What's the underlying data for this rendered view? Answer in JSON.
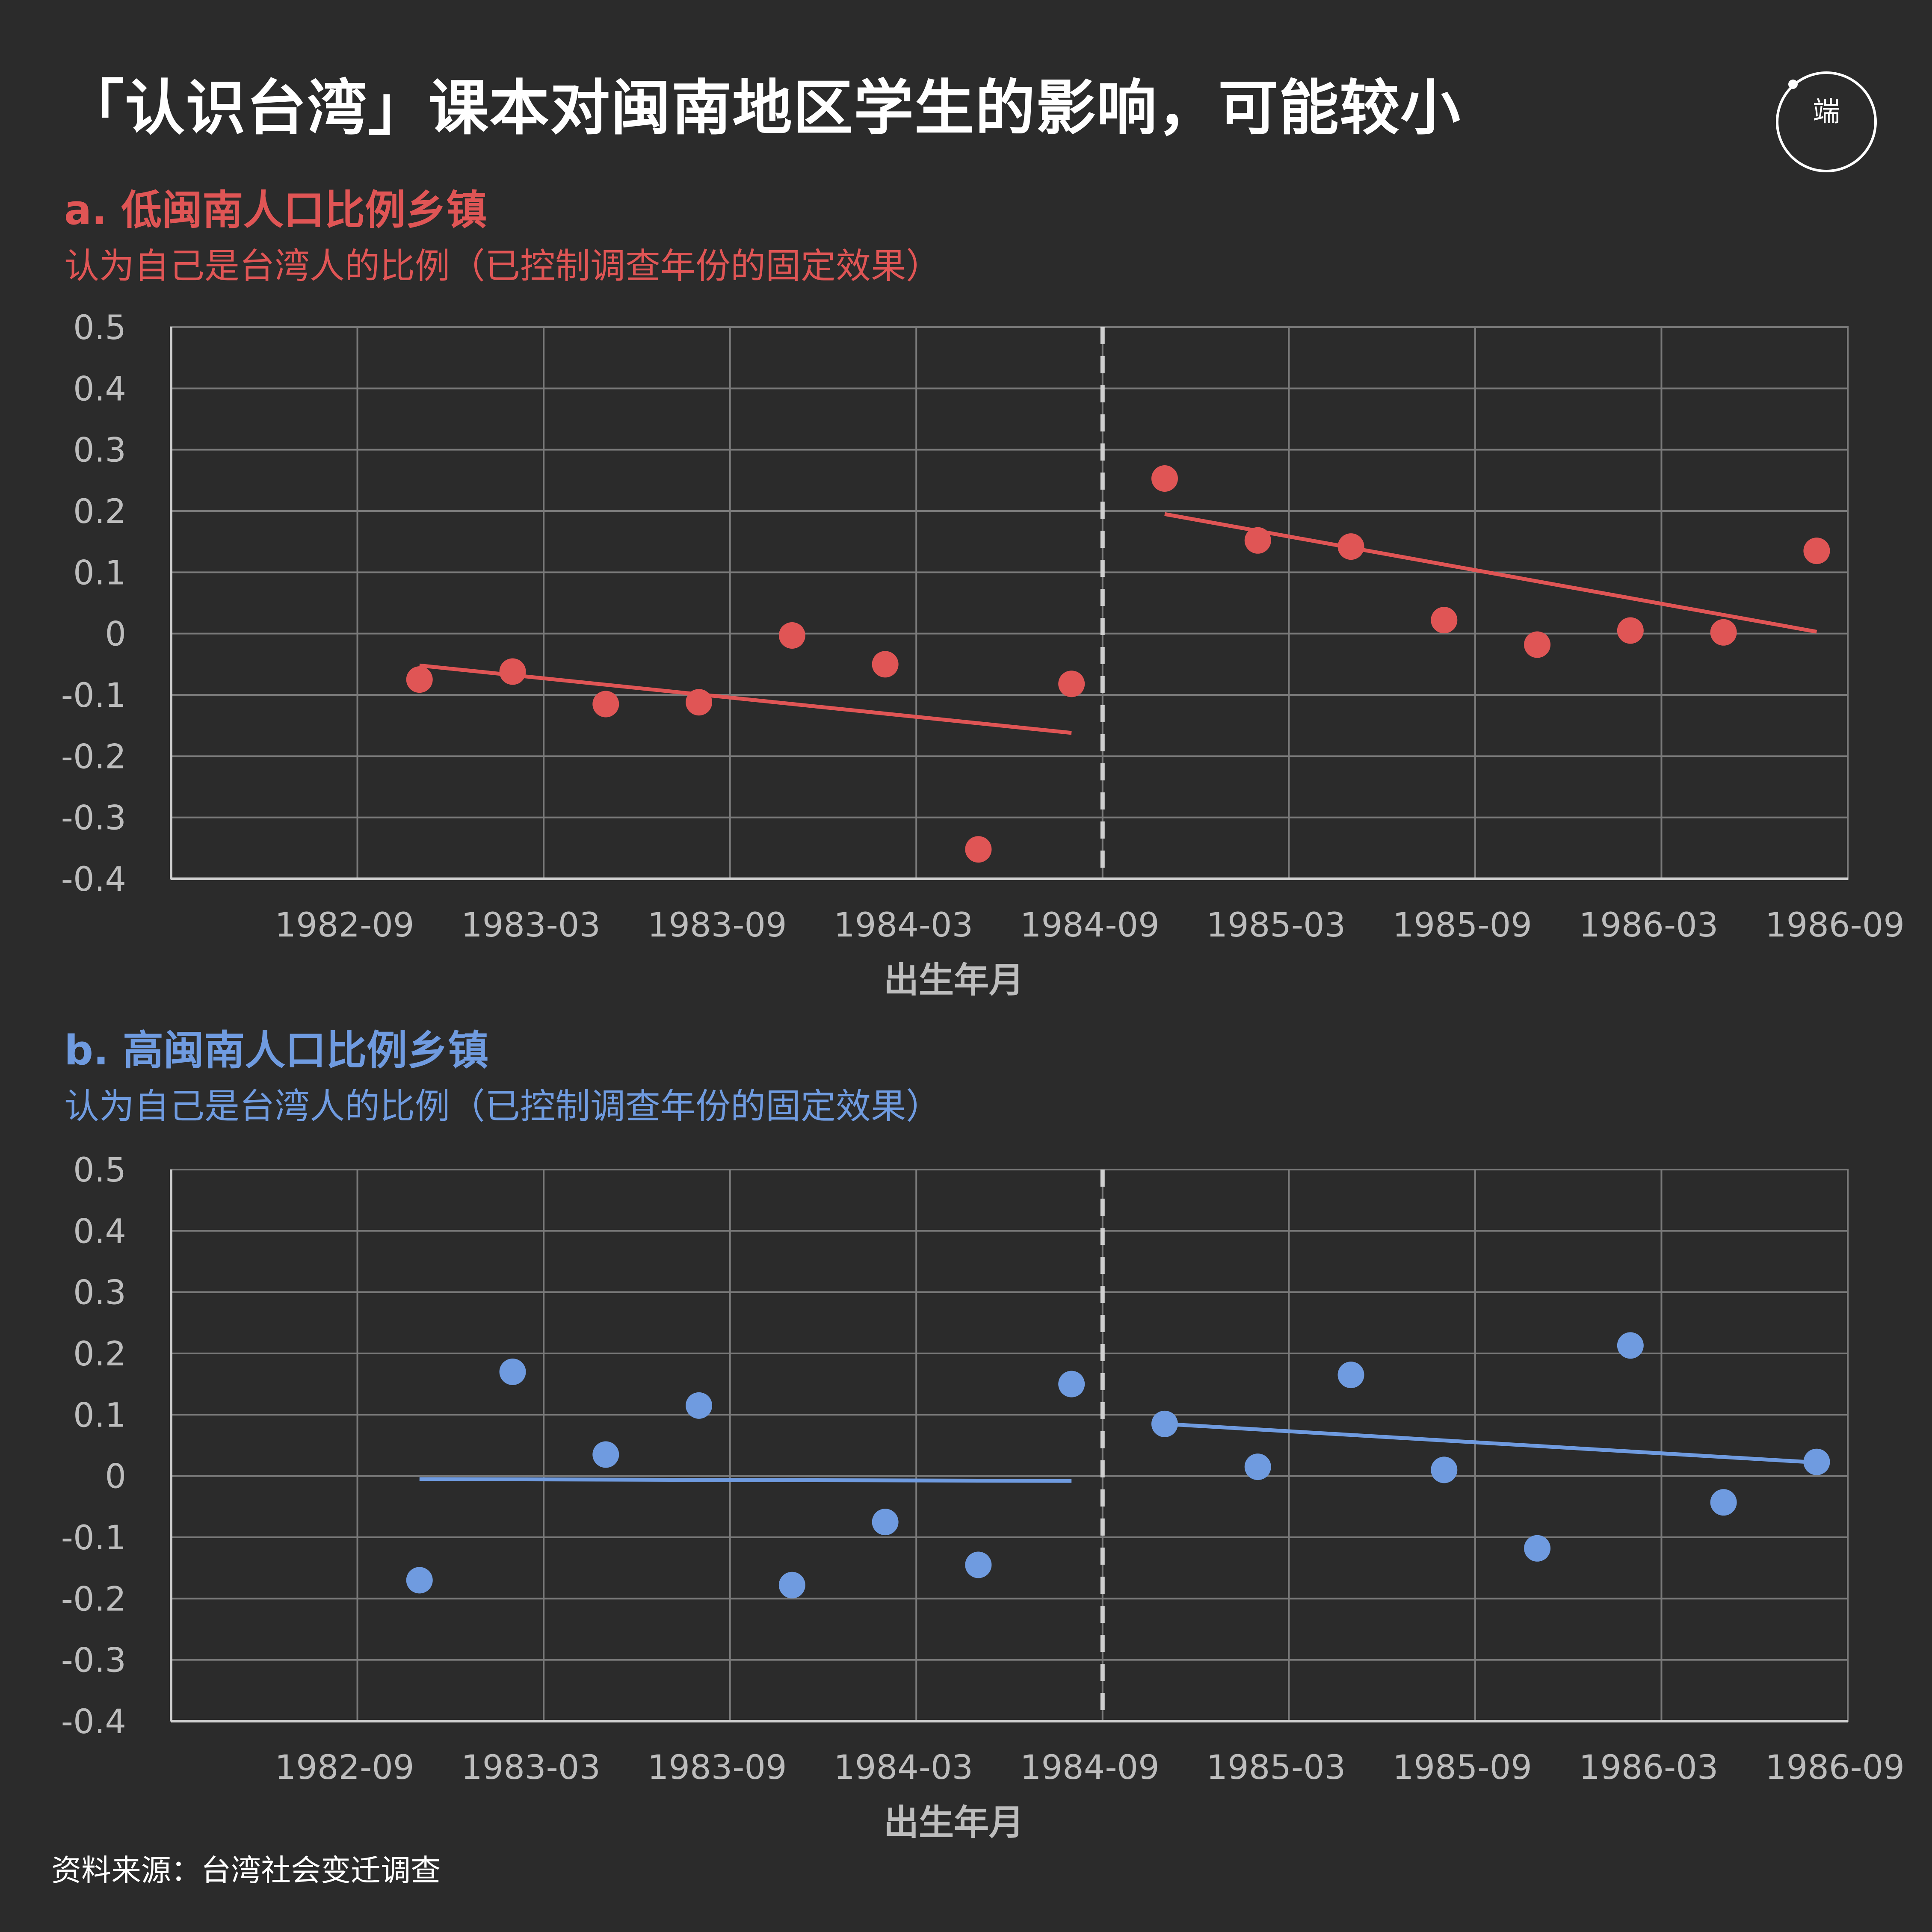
{
  "title": "「认识台湾」课本对闽南地区学生的影响，可能较小",
  "logo": {
    "icon": "theinitium-logo",
    "text": "端"
  },
  "source": "资料来源：台湾社会变迁调查",
  "colors": {
    "background": "#2b2b2b",
    "panel_a": "#e05555",
    "panel_b": "#6f9be0",
    "grid": "#7a7a7a",
    "tick": "#bdbdbd"
  },
  "chart_data": [
    {
      "type": "scatter",
      "title": "a. 低闽南人口比例乡镇",
      "subtitle": "认为自己是台湾人的比例（已控制调查年份的固定效果）",
      "xlabel": "出生年月",
      "ylabel": "",
      "x_ticks": [
        "1982-09",
        "1983-03",
        "1983-09",
        "1984-03",
        "1984-09",
        "1985-03",
        "1985-09",
        "1986-03",
        "1986-09"
      ],
      "xlim": [
        "1982-03",
        "1986-09"
      ],
      "ylim": [
        -0.4,
        0.5
      ],
      "y_ticks": [
        "0.5",
        "0.4",
        "0.3",
        "0.2",
        "0.1",
        "0",
        "-0.1",
        "-0.2",
        "-0.3",
        "-0.4"
      ],
      "grid": true,
      "cutoff": "1984-09",
      "points": [
        {
          "x": "1982-11",
          "y": -0.075
        },
        {
          "x": "1983-02",
          "y": -0.062
        },
        {
          "x": "1983-05",
          "y": -0.115
        },
        {
          "x": "1983-08",
          "y": -0.112
        },
        {
          "x": "1983-11",
          "y": -0.003
        },
        {
          "x": "1984-02",
          "y": -0.05
        },
        {
          "x": "1984-05",
          "y": -0.352
        },
        {
          "x": "1984-08",
          "y": -0.082
        },
        {
          "x": "1984-11",
          "y": 0.253
        },
        {
          "x": "1985-02",
          "y": 0.152
        },
        {
          "x": "1985-05",
          "y": 0.142
        },
        {
          "x": "1985-08",
          "y": 0.022
        },
        {
          "x": "1985-11",
          "y": -0.018
        },
        {
          "x": "1986-02",
          "y": 0.005
        },
        {
          "x": "1986-05",
          "y": 0.002
        },
        {
          "x": "1986-08",
          "y": 0.135
        }
      ],
      "fit_lines": [
        {
          "x": [
            "1982-11",
            "1984-08"
          ],
          "y": [
            -0.052,
            -0.162
          ]
        },
        {
          "x": [
            "1984-11",
            "1986-08"
          ],
          "y": [
            0.195,
            0.003
          ]
        }
      ]
    },
    {
      "type": "scatter",
      "title": "b. 高闽南人口比例乡镇",
      "subtitle": "认为自己是台湾人的比例（已控制调查年份的固定效果）",
      "xlabel": "出生年月",
      "ylabel": "",
      "x_ticks": [
        "1982-09",
        "1983-03",
        "1983-09",
        "1984-03",
        "1984-09",
        "1985-03",
        "1985-09",
        "1986-03",
        "1986-09"
      ],
      "xlim": [
        "1982-03",
        "1986-09"
      ],
      "ylim": [
        -0.4,
        0.5
      ],
      "y_ticks": [
        "0.5",
        "0.4",
        "0.3",
        "0.2",
        "0.1",
        "0",
        "-0.1",
        "-0.2",
        "-0.3",
        "-0.4"
      ],
      "grid": true,
      "cutoff": "1984-09",
      "points": [
        {
          "x": "1982-11",
          "y": -0.17
        },
        {
          "x": "1983-02",
          "y": 0.17
        },
        {
          "x": "1983-05",
          "y": 0.035
        },
        {
          "x": "1983-08",
          "y": 0.115
        },
        {
          "x": "1983-11",
          "y": -0.178
        },
        {
          "x": "1984-02",
          "y": -0.075
        },
        {
          "x": "1984-05",
          "y": -0.145
        },
        {
          "x": "1984-08",
          "y": 0.15
        },
        {
          "x": "1984-11",
          "y": 0.085
        },
        {
          "x": "1985-02",
          "y": 0.015
        },
        {
          "x": "1985-05",
          "y": 0.165
        },
        {
          "x": "1985-08",
          "y": 0.01
        },
        {
          "x": "1985-11",
          "y": -0.118
        },
        {
          "x": "1986-02",
          "y": 0.213
        },
        {
          "x": "1986-05",
          "y": -0.043
        },
        {
          "x": "1986-08",
          "y": 0.023
        }
      ],
      "fit_lines": [
        {
          "x": [
            "1982-11",
            "1984-08"
          ],
          "y": [
            -0.005,
            -0.008
          ]
        },
        {
          "x": [
            "1984-11",
            "1986-08"
          ],
          "y": [
            0.085,
            0.022
          ]
        }
      ]
    }
  ]
}
